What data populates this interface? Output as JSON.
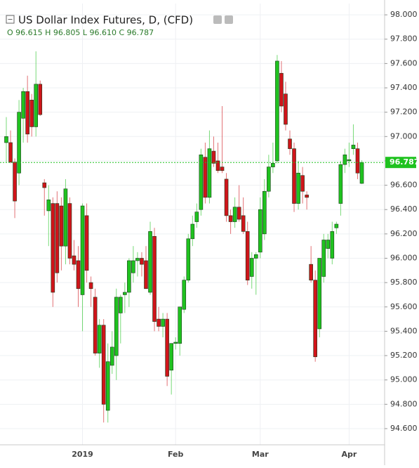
{
  "chart_data": {
    "type": "candlestick",
    "title": "US Dollar Index Futures, D, (CFD)",
    "ohlc_header": "O 96.615  H 96.805  L 96.610  C 96.787",
    "categories": [
      null,
      null,
      null,
      null,
      null,
      null,
      null,
      null,
      null,
      null,
      null,
      null,
      null,
      null,
      null,
      null,
      null,
      null,
      "2019",
      null,
      null,
      null,
      null,
      null,
      null,
      null,
      null,
      null,
      null,
      null,
      null,
      null,
      null,
      null,
      null,
      null,
      null,
      null,
      null,
      null,
      "Feb",
      null,
      null,
      null,
      null,
      null,
      null,
      null,
      null,
      null,
      null,
      null,
      null,
      null,
      null,
      null,
      null,
      null,
      null,
      null,
      "Mar",
      null,
      null,
      null,
      null,
      null,
      null,
      null,
      null,
      null,
      null,
      null,
      null,
      null,
      null,
      null,
      null,
      null,
      null,
      null,
      null,
      "Apr",
      null,
      null,
      null
    ],
    "open": [
      96.95,
      96.95,
      96.79,
      96.7,
      97.15,
      97.37,
      97.3,
      97.08,
      97.43,
      96.62,
      96.39,
      96.45,
      96.45,
      96.43,
      96.1,
      96.45,
      96.02,
      95.98,
      95.7,
      96.35,
      95.8,
      95.68,
      95.22,
      95.45,
      94.75,
      95.12,
      95.2,
      95.55,
      95.7,
      95.72,
      95.88,
      95.98,
      96.0,
      95.98,
      95.72,
      96.18,
      95.5,
      95.44,
      95.5,
      95.08,
      95.3,
      95.3,
      95.58,
      95.82,
      96.16,
      96.3,
      96.4,
      96.83,
      96.5,
      96.88,
      96.8,
      96.75,
      96.65,
      96.35,
      96.3,
      96.42,
      96.35,
      96.22,
      95.85,
      96.0,
      96.05,
      96.2,
      96.55,
      96.75,
      96.8,
      97.52,
      97.35,
      96.98,
      96.9,
      96.45,
      96.68,
      96.52,
      95.95,
      95.82,
      95.42,
      95.85,
      96.08,
      96.0,
      96.25,
      96.45,
      96.77,
      96.8,
      96.9,
      96.9,
      96.615
    ],
    "high": [
      97.16,
      97.05,
      96.82,
      97.3,
      97.4,
      97.5,
      97.35,
      97.7,
      97.46,
      96.65,
      96.6,
      96.5,
      96.55,
      96.5,
      96.65,
      96.5,
      96.15,
      96.1,
      96.45,
      96.45,
      95.85,
      95.75,
      95.5,
      95.5,
      95.3,
      95.4,
      95.75,
      95.7,
      95.8,
      96.0,
      96.1,
      96.05,
      96.05,
      96.1,
      96.3,
      96.25,
      95.6,
      95.55,
      95.55,
      95.3,
      95.35,
      95.6,
      95.85,
      96.2,
      96.35,
      96.45,
      96.9,
      96.95,
      97.05,
      97.0,
      96.95,
      97.25,
      96.7,
      96.4,
      96.5,
      96.6,
      96.5,
      96.3,
      96.05,
      96.05,
      96.5,
      96.65,
      96.85,
      96.95,
      97.67,
      97.62,
      97.45,
      97.05,
      96.95,
      96.8,
      96.75,
      96.55,
      96.1,
      95.9,
      96.0,
      96.2,
      96.2,
      96.3,
      96.3,
      96.8,
      96.9,
      96.95,
      97.1,
      96.95,
      96.805
    ],
    "low": [
      96.79,
      96.78,
      96.33,
      96.6,
      96.95,
      96.95,
      97.0,
      97.0,
      97.17,
      96.35,
      96.1,
      95.6,
      95.8,
      95.9,
      95.95,
      95.95,
      95.9,
      95.6,
      95.4,
      95.8,
      95.6,
      95.2,
      95.1,
      94.65,
      94.65,
      95.05,
      95.0,
      95.3,
      95.55,
      95.6,
      95.8,
      95.85,
      95.85,
      95.75,
      95.7,
      95.4,
      95.4,
      95.35,
      94.95,
      94.88,
      95.25,
      95.2,
      95.55,
      95.8,
      96.1,
      96.25,
      96.35,
      96.45,
      96.45,
      96.75,
      96.7,
      96.7,
      96.3,
      96.2,
      96.25,
      96.3,
      96.2,
      95.78,
      95.75,
      95.7,
      96.0,
      96.15,
      96.5,
      96.7,
      96.78,
      97.2,
      97.05,
      96.85,
      96.38,
      96.4,
      96.45,
      96.4,
      95.8,
      95.15,
      95.35,
      95.8,
      96.0,
      95.95,
      96.2,
      96.35,
      96.7,
      96.75,
      96.85,
      96.65,
      96.61
    ],
    "close": [
      97.0,
      96.79,
      96.47,
      97.2,
      97.37,
      97.02,
      97.08,
      97.43,
      97.18,
      96.58,
      96.48,
      95.72,
      95.88,
      96.1,
      96.57,
      96.0,
      95.95,
      95.75,
      96.43,
      95.9,
      95.75,
      95.22,
      95.45,
      94.8,
      95.15,
      95.27,
      95.68,
      95.68,
      95.72,
      95.98,
      95.98,
      96.0,
      95.95,
      95.75,
      96.22,
      95.48,
      95.44,
      95.5,
      95.03,
      95.3,
      95.31,
      95.6,
      95.82,
      96.16,
      96.28,
      96.38,
      96.85,
      96.5,
      96.9,
      96.78,
      96.72,
      96.72,
      96.35,
      96.3,
      96.42,
      96.32,
      96.22,
      95.82,
      96.0,
      96.03,
      96.4,
      96.55,
      96.75,
      96.78,
      97.62,
      97.25,
      97.1,
      96.9,
      96.45,
      96.7,
      96.55,
      96.5,
      95.82,
      95.19,
      96.0,
      96.15,
      96.15,
      96.22,
      96.28,
      96.77,
      96.85,
      96.81,
      96.93,
      96.7,
      96.787
    ],
    "up_color": "#1fc21f",
    "down_color": "#d0141a",
    "last_price": 96.787,
    "last_price_color": "#1fc21f",
    "ylim": [
      94.467,
      98.093
    ],
    "yticks": [
      {
        "value": 94.6,
        "label": "94.600"
      },
      {
        "value": 94.8,
        "label": "94.800"
      },
      {
        "value": 95,
        "label": "95.000"
      },
      {
        "value": 95.2,
        "label": "95.200"
      },
      {
        "value": 95.4,
        "label": "95.400"
      },
      {
        "value": 95.6,
        "label": "95.600"
      },
      {
        "value": 95.8,
        "label": "95.800"
      },
      {
        "value": 96,
        "label": "96.000"
      },
      {
        "value": 96.2,
        "label": "96.200"
      },
      {
        "value": 96.4,
        "label": "96.400"
      },
      {
        "value": 96.6,
        "label": "96.600"
      },
      {
        "value": 96.8,
        "label": "96.800"
      },
      {
        "value": 97,
        "label": "97.000"
      },
      {
        "value": 97.2,
        "label": "97.200"
      },
      {
        "value": 97.4,
        "label": "97.400"
      },
      {
        "value": 97.6,
        "label": "97.600"
      },
      {
        "value": 97.8,
        "label": "97.800"
      },
      {
        "value": 98,
        "label": "98.000"
      }
    ],
    "grid": true
  }
}
